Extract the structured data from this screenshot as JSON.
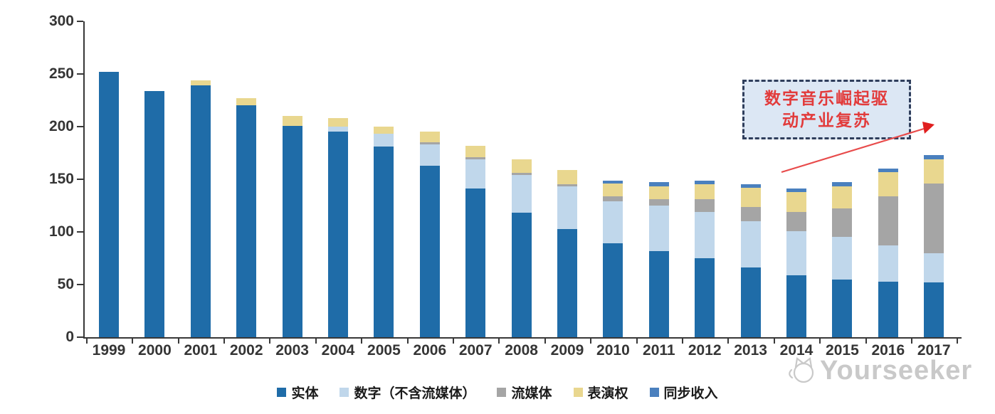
{
  "chart_data": {
    "type": "bar",
    "stacked": true,
    "title": "",
    "xlabel": "",
    "ylabel": "",
    "ylim": [
      0,
      300
    ],
    "yticks": [
      0,
      50,
      100,
      150,
      200,
      250,
      300
    ],
    "grid": false,
    "legend_position": "bottom",
    "categories": [
      "1999",
      "2000",
      "2001",
      "2002",
      "2003",
      "2004",
      "2005",
      "2006",
      "2007",
      "2008",
      "2009",
      "2010",
      "2011",
      "2012",
      "2013",
      "2014",
      "2015",
      "2016",
      "2017"
    ],
    "series": [
      {
        "key": "physical",
        "name": "实体",
        "color": "#1f6ca8",
        "values": [
          252,
          234,
          239,
          220,
          201,
          195,
          181,
          163,
          141,
          118,
          103,
          89,
          82,
          75,
          66,
          59,
          55,
          53,
          52
        ]
      },
      {
        "key": "digital-excl-streaming",
        "name": "数字（不含流媒体）",
        "color": "#c0d7eb",
        "values": [
          0,
          0,
          0,
          0,
          0,
          5,
          12,
          20,
          28,
          36,
          40,
          40,
          43,
          44,
          44,
          42,
          40,
          34,
          28
        ]
      },
      {
        "key": "streaming",
        "name": "流媒体",
        "color": "#a5a5a5",
        "values": [
          0,
          0,
          0,
          0,
          0,
          0,
          0,
          2,
          2,
          2,
          2,
          5,
          6,
          12,
          14,
          18,
          27,
          47,
          66
        ]
      },
      {
        "key": "performance-rights",
        "name": "表演权",
        "color": "#e9d78f",
        "values": [
          0,
          0,
          5,
          7,
          9,
          8,
          7,
          10,
          11,
          13,
          14,
          12,
          12,
          14,
          18,
          19,
          21,
          23,
          23
        ]
      },
      {
        "key": "sync-revenue",
        "name": "同步收入",
        "color": "#4a80be",
        "values": [
          0,
          0,
          0,
          0,
          0,
          0,
          0,
          0,
          0,
          0,
          0,
          3,
          4,
          4,
          3,
          3,
          4,
          3,
          4
        ]
      }
    ]
  },
  "annotation": {
    "line1": "数字音乐崛起驱",
    "line2": "动产业复苏"
  },
  "watermark": {
    "text": "Yourseeker"
  },
  "colors": {
    "axis": "#383838",
    "annotation_border": "#2f3e5c",
    "annotation_bg": "#dce7f4",
    "annotation_text": "#e23b3b",
    "arrow": "#e84b4b",
    "watermark": "#c9c9c9"
  }
}
